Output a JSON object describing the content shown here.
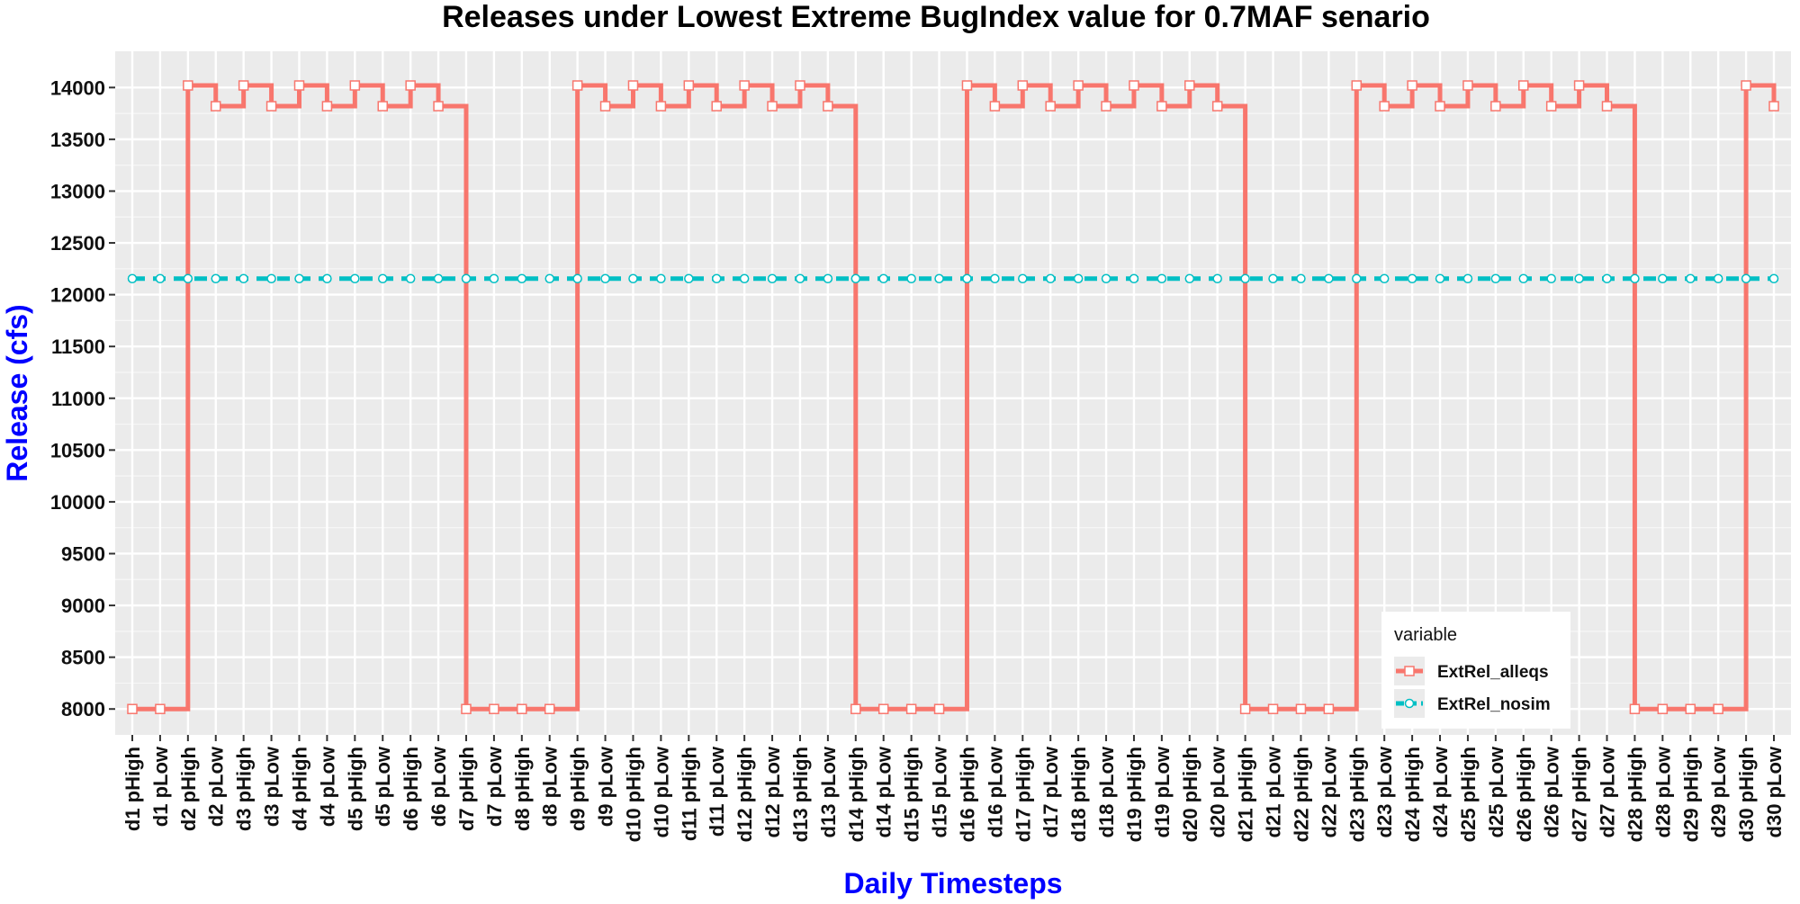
{
  "chart_data": {
    "type": "line",
    "title": "Releases under Lowest Extreme BugIndex value for 0.7MAF senario",
    "xlabel": "Daily Timesteps",
    "ylabel": "Release (cfs)",
    "ylim": [
      7750,
      14350
    ],
    "yticks": [
      8000,
      8500,
      9000,
      9500,
      10000,
      10500,
      11000,
      11500,
      12000,
      12500,
      13000,
      13500,
      14000
    ],
    "grid": true,
    "legend_title": "variable",
    "legend_position": "bottom-right",
    "categories": [
      "d1 pHigh",
      "d1 pLow",
      "d2 pHigh",
      "d2 pLow",
      "d3 pHigh",
      "d3 pLow",
      "d4 pHigh",
      "d4 pLow",
      "d5 pHigh",
      "d5 pLow",
      "d6 pHigh",
      "d6 pLow",
      "d7 pHigh",
      "d7 pLow",
      "d8 pHigh",
      "d8 pLow",
      "d9 pHigh",
      "d9 pLow",
      "d10 pHigh",
      "d10 pLow",
      "d11 pHigh",
      "d11 pLow",
      "d12 pHigh",
      "d12 pLow",
      "d13 pHigh",
      "d13 pLow",
      "d14 pHigh",
      "d14 pLow",
      "d15 pHigh",
      "d15 pLow",
      "d16 pHigh",
      "d16 pLow",
      "d17 pHigh",
      "d17 pLow",
      "d18 pHigh",
      "d18 pLow",
      "d19 pHigh",
      "d19 pLow",
      "d20 pHigh",
      "d20 pLow",
      "d21 pHigh",
      "d21 pLow",
      "d22 pHigh",
      "d22 pLow",
      "d23 pHigh",
      "d23 pLow",
      "d24 pHigh",
      "d24 pLow",
      "d25 pHigh",
      "d25 pLow",
      "d26 pHigh",
      "d26 pLow",
      "d27 pHigh",
      "d27 pLow",
      "d28 pHigh",
      "d28 pLow",
      "d29 pHigh",
      "d29 pLow",
      "d30 pHigh",
      "d30 pLow"
    ],
    "series": [
      {
        "name": "ExtRel_alleqs",
        "color": "#f8766d",
        "marker": "square",
        "line_style": "solid",
        "step": true,
        "values": [
          8000,
          8000,
          14020,
          13820,
          14020,
          13820,
          14020,
          13820,
          14020,
          13820,
          14020,
          13820,
          8000,
          8000,
          8000,
          8000,
          14020,
          13820,
          14020,
          13820,
          14020,
          13820,
          14020,
          13820,
          14020,
          13820,
          8000,
          8000,
          8000,
          8000,
          14020,
          13820,
          14020,
          13820,
          14020,
          13820,
          14020,
          13820,
          14020,
          13820,
          8000,
          8000,
          8000,
          8000,
          14020,
          13820,
          14020,
          13820,
          14020,
          13820,
          14020,
          13820,
          14020,
          13820,
          8000,
          8000,
          8000,
          8000,
          14020,
          13820
        ]
      },
      {
        "name": "ExtRel_nosim",
        "color": "#00bfc4",
        "marker": "circle",
        "line_style": "dashed",
        "step": true,
        "values": [
          12155,
          12155,
          12155,
          12155,
          12155,
          12155,
          12155,
          12155,
          12155,
          12155,
          12155,
          12155,
          12155,
          12155,
          12155,
          12155,
          12155,
          12155,
          12155,
          12155,
          12155,
          12155,
          12155,
          12155,
          12155,
          12155,
          12155,
          12155,
          12155,
          12155,
          12155,
          12155,
          12155,
          12155,
          12155,
          12155,
          12155,
          12155,
          12155,
          12155,
          12155,
          12155,
          12155,
          12155,
          12155,
          12155,
          12155,
          12155,
          12155,
          12155,
          12155,
          12155,
          12155,
          12155,
          12155,
          12155,
          12155,
          12155,
          12155,
          12155
        ]
      }
    ]
  }
}
